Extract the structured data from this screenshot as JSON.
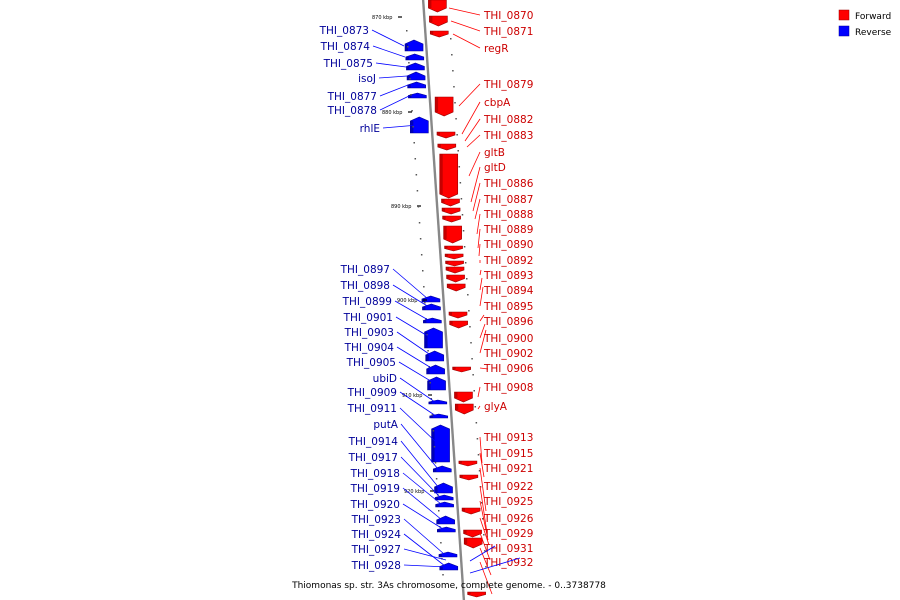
{
  "caption": "Thiomonas sp. str. 3As chromosome, complete genome. - 0..3738778",
  "legend": [
    {
      "label": "Forward",
      "color": "#ff0000"
    },
    {
      "label": "Reverse",
      "color": "#0000ff"
    }
  ],
  "colors": {
    "forward": "#ff0000",
    "reverse": "#0000ff",
    "forward_label": "#cc0000",
    "reverse_label": "#000099",
    "axis": "#888888"
  },
  "scale_ticks": [
    "870 kbp",
    "880 kbp",
    "890 kbp",
    "900 kbp",
    "910 kbp",
    "920 kbp"
  ],
  "forward_genes": [
    "THI_0870",
    "THI_0871",
    "regR",
    "THI_0879",
    "cbpA",
    "THI_0882",
    "THI_0883",
    "gltB",
    "gltD",
    "THI_0886",
    "THI_0887",
    "THI_0888",
    "THI_0889",
    "THI_0890",
    "THI_0892",
    "THI_0893",
    "THI_0894",
    "THI_0895",
    "THI_0896",
    "THI_0900",
    "THI_0902",
    "THI_0906",
    "THI_0908",
    "glyA",
    "THI_0913",
    "THI_0915",
    "THI_0921",
    "THI_0922",
    "THI_0925",
    "THI_0926",
    "THI_0929",
    "THI_0931",
    "THI_0932"
  ],
  "reverse_genes": [
    "THI_0873",
    "THI_0874",
    "THI_0875",
    "isoJ",
    "THI_0877",
    "THI_0878",
    "rhlE",
    "THI_0897",
    "THI_0898",
    "THI_0899",
    "THI_0901",
    "THI_0903",
    "THI_0904",
    "THI_0905",
    "ubiD",
    "THI_0909",
    "THI_0911",
    "putA",
    "THI_0914",
    "THI_0917",
    "THI_0918",
    "THI_0919",
    "THI_0920",
    "THI_0923",
    "THI_0924",
    "THI_0927",
    "THI_0928"
  ]
}
